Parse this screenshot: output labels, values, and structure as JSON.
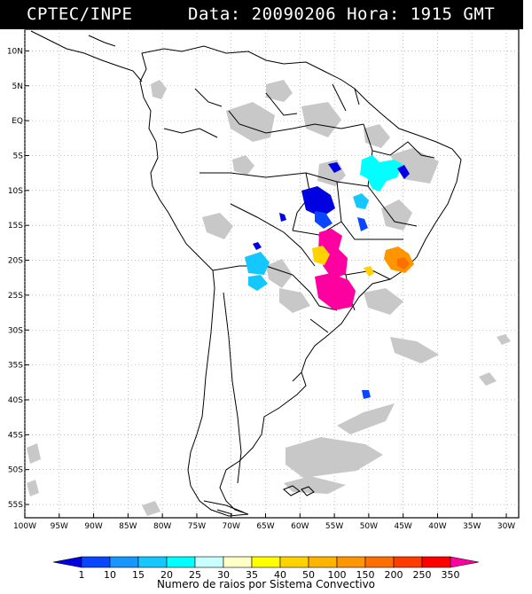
{
  "title": {
    "source": "CPTEC/INPE",
    "data_hora": "Data: 20090206 Hora: 1915 GMT"
  },
  "map": {
    "lat_labels": [
      "10N",
      "5N",
      "EQ",
      "5S",
      "10S",
      "15S",
      "20S",
      "25S",
      "30S",
      "35S",
      "40S",
      "45S",
      "50S",
      "55S"
    ],
    "lon_labels": [
      "100W",
      "95W",
      "90W",
      "85W",
      "80W",
      "75W",
      "70W",
      "65W",
      "60W",
      "55W",
      "50W",
      "45W",
      "40W",
      "35W",
      "30W"
    ],
    "background_color": "#ffffff",
    "coast_color": "#000000",
    "cloud_color": "#c8c8c8"
  },
  "legend": {
    "title": "Numero de raios por Sistema Convectivo",
    "ticks": [
      "1",
      "10",
      "15",
      "20",
      "25",
      "30",
      "35",
      "40",
      "50",
      "100",
      "150",
      "200",
      "250",
      "350"
    ],
    "colors": [
      "#0000e0",
      "#0a46ff",
      "#1696ff",
      "#14c8ff",
      "#00ffff",
      "#c8ffff",
      "#ffffc8",
      "#ffff00",
      "#ffd200",
      "#ffb400",
      "#ff9600",
      "#ff6e00",
      "#ff3c00",
      "#ff0000",
      "#ff00a0"
    ]
  }
}
